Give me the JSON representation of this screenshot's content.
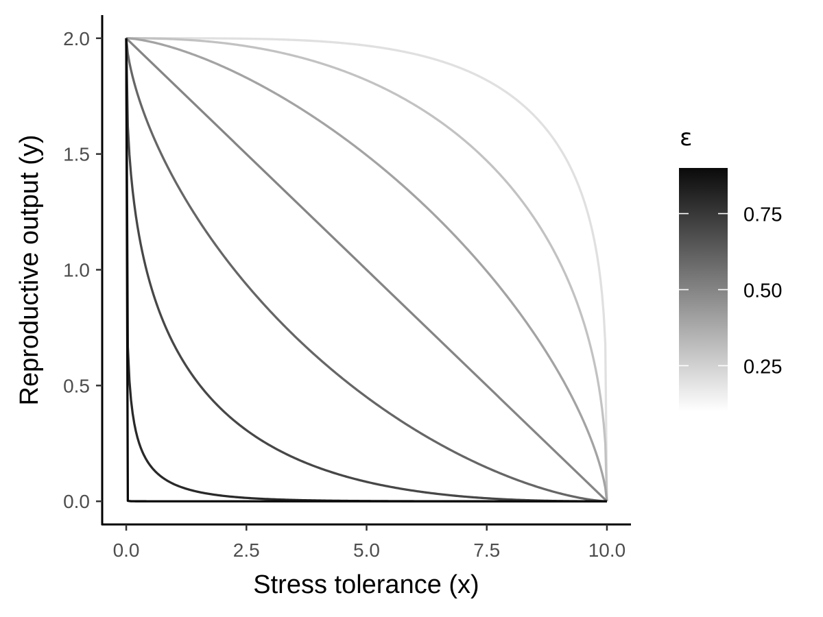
{
  "chart_data": {
    "type": "line",
    "xlabel": "Stress tolerance (x)",
    "ylabel": "Reproductive output (y)",
    "xlim": [
      -0.5,
      10.5
    ],
    "ylim": [
      -0.1,
      2.1
    ],
    "x_ticks": [
      0,
      2.5,
      5,
      7.5,
      10
    ],
    "x_tick_labels": [
      "0.0",
      "2.5",
      "5.0",
      "7.5",
      "10.0"
    ],
    "y_ticks": [
      0,
      0.5,
      1,
      1.5,
      2
    ],
    "y_tick_labels": [
      "0.0",
      "0.5",
      "1.0",
      "1.5",
      "2.0"
    ],
    "grid": false,
    "x_max": 10,
    "y_max": 2,
    "series": [
      {
        "epsilon": 0.1,
        "exponent": 0.111
      },
      {
        "epsilon": 0.2,
        "exponent": 0.25
      },
      {
        "epsilon": 0.3,
        "exponent": 0.429
      },
      {
        "epsilon": 0.4,
        "exponent": 0.667
      },
      {
        "epsilon": 0.5,
        "exponent": 1.0
      },
      {
        "epsilon": 0.6,
        "exponent": 1.5
      },
      {
        "epsilon": 0.7,
        "exponent": 2.333
      },
      {
        "epsilon": 0.8,
        "exponent": 4.0
      },
      {
        "epsilon": 0.9,
        "exponent": 9.0
      }
    ],
    "legend": {
      "title": "ε",
      "placement": "right",
      "type": "colorbar",
      "range": [
        0.1,
        0.9
      ],
      "ticks": [
        0.25,
        0.5,
        0.75
      ],
      "tick_labels": [
        "0.25",
        "0.50",
        "0.75"
      ],
      "low_color": "#ffffff",
      "high_color": "#0a0a0a"
    }
  }
}
